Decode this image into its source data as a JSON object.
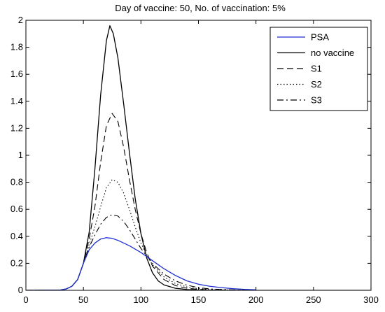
{
  "chart_data": {
    "type": "line",
    "title": "Day of vaccine: 50, No. of vaccination: 5%",
    "xlabel": "",
    "ylabel": "",
    "xlim": [
      0,
      300
    ],
    "ylim": [
      0,
      2
    ],
    "xticks": [
      0,
      50,
      100,
      150,
      200,
      250,
      300
    ],
    "yticks": [
      0,
      0.2,
      0.4,
      0.6,
      0.8,
      1,
      1.2,
      1.4,
      1.6,
      1.8,
      2
    ],
    "grid": false,
    "legend_position": "top-right",
    "series": [
      {
        "name": "PSA",
        "color": "#1f2fd0",
        "dash": "solid",
        "x": [
          0,
          30,
          35,
          40,
          45,
          50,
          55,
          60,
          65,
          70,
          75,
          80,
          90,
          100,
          110,
          120,
          130,
          140,
          150,
          160,
          170,
          180,
          190,
          200
        ],
        "y": [
          0,
          0.002,
          0.01,
          0.03,
          0.08,
          0.2,
          0.3,
          0.35,
          0.38,
          0.39,
          0.385,
          0.37,
          0.33,
          0.28,
          0.22,
          0.16,
          0.11,
          0.07,
          0.045,
          0.03,
          0.02,
          0.012,
          0.007,
          0.004
        ]
      },
      {
        "name": "no vaccine",
        "color": "#000000",
        "dash": "solid",
        "x": [
          0,
          30,
          35,
          40,
          45,
          50,
          55,
          60,
          65,
          70,
          73,
          76,
          80,
          85,
          90,
          95,
          100,
          105,
          110,
          115,
          120,
          130,
          140,
          150,
          160,
          170,
          200,
          300
        ],
        "y": [
          0,
          0.002,
          0.01,
          0.03,
          0.08,
          0.2,
          0.43,
          0.9,
          1.45,
          1.85,
          1.96,
          1.9,
          1.72,
          1.38,
          1.02,
          0.68,
          0.42,
          0.24,
          0.13,
          0.07,
          0.04,
          0.015,
          0.006,
          0.002,
          0.001,
          0,
          0,
          0
        ]
      },
      {
        "name": "S1",
        "color": "#000000",
        "dash": "dashed",
        "x": [
          0,
          30,
          35,
          40,
          45,
          50,
          55,
          60,
          65,
          70,
          75,
          80,
          85,
          90,
          95,
          100,
          105,
          110,
          120,
          130,
          140,
          150,
          160,
          180,
          200
        ],
        "y": [
          0,
          0.002,
          0.01,
          0.03,
          0.08,
          0.2,
          0.38,
          0.62,
          0.95,
          1.22,
          1.31,
          1.25,
          1.06,
          0.82,
          0.6,
          0.42,
          0.28,
          0.18,
          0.08,
          0.035,
          0.015,
          0.007,
          0.003,
          0.001,
          0
        ]
      },
      {
        "name": "S2",
        "color": "#000000",
        "dash": "dotted",
        "x": [
          0,
          30,
          35,
          40,
          45,
          50,
          55,
          60,
          65,
          70,
          75,
          80,
          85,
          90,
          95,
          100,
          105,
          110,
          120,
          130,
          140,
          150,
          160,
          180,
          200
        ],
        "y": [
          0,
          0.002,
          0.01,
          0.03,
          0.08,
          0.2,
          0.34,
          0.47,
          0.62,
          0.76,
          0.82,
          0.8,
          0.72,
          0.6,
          0.47,
          0.35,
          0.26,
          0.19,
          0.1,
          0.05,
          0.025,
          0.012,
          0.006,
          0.002,
          0.001
        ]
      },
      {
        "name": "S3",
        "color": "#000000",
        "dash": "dashdot",
        "x": [
          0,
          30,
          35,
          40,
          45,
          50,
          55,
          60,
          65,
          70,
          75,
          80,
          85,
          90,
          95,
          100,
          110,
          120,
          130,
          140,
          150,
          160,
          180,
          200
        ],
        "y": [
          0,
          0.002,
          0.01,
          0.03,
          0.08,
          0.2,
          0.32,
          0.41,
          0.49,
          0.54,
          0.56,
          0.55,
          0.51,
          0.45,
          0.38,
          0.31,
          0.2,
          0.12,
          0.07,
          0.038,
          0.02,
          0.01,
          0.003,
          0.001
        ]
      }
    ]
  }
}
